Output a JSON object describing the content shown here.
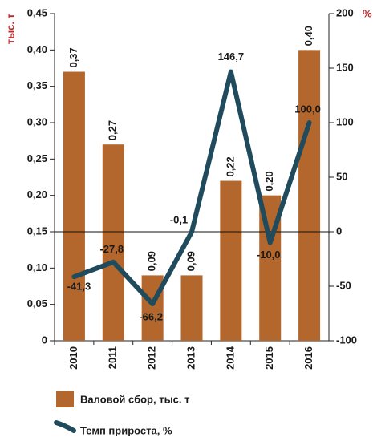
{
  "chart_data": {
    "type": "bar-line",
    "categories": [
      "2010",
      "2011",
      "2012",
      "2013",
      "2014",
      "2015",
      "2016"
    ],
    "y_label": "тыс. т",
    "y2_label": "%",
    "series": [
      {
        "name": "Валовой сбор, тыс. т",
        "type": "bar",
        "color": "#b3672d",
        "axis": "y",
        "values": [
          0.37,
          0.27,
          0.09,
          0.09,
          0.22,
          0.2,
          0.4
        ],
        "value_labels": [
          "0,37",
          "0,27",
          "0,09",
          "0,09",
          "0,22",
          "0,20",
          "0,40"
        ]
      },
      {
        "name": "Темп прироста, %",
        "type": "line",
        "color": "#1f4b5d",
        "axis": "y2",
        "values": [
          -41.3,
          -27.8,
          -66.2,
          -0.1,
          146.7,
          -10.0,
          100.0
        ],
        "value_labels": [
          "-41,3",
          "-27,8",
          "-66,2",
          "-0,1",
          "146,7",
          "-10,0",
          "100,0"
        ]
      }
    ],
    "ylim": [
      0,
      0.45
    ],
    "yticks": [
      0,
      {
        "value": 0.05,
        "label": "0,05"
      },
      {
        "value": 0.1,
        "label": "0,10"
      },
      {
        "value": 0.15,
        "label": "0,15"
      },
      {
        "value": 0.2,
        "label": "0,20"
      },
      {
        "value": 0.25,
        "label": "0,25"
      },
      {
        "value": 0.3,
        "label": "0,30"
      },
      {
        "value": 0.35,
        "label": "0,35"
      },
      {
        "value": 0.4,
        "label": "0,40"
      },
      {
        "value": 0.45,
        "label": "0,45"
      }
    ],
    "y2lim": [
      -100,
      200
    ],
    "y2ticks": [
      -100,
      -50,
      0,
      50,
      100,
      150,
      200
    ],
    "zero_line": true
  }
}
